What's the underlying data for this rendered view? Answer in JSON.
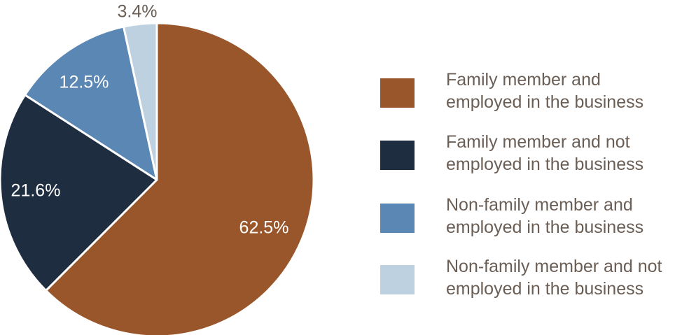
{
  "chart_data": {
    "type": "pie",
    "title": "",
    "categories": [
      "Family member and employed in the business",
      "Family member and not employed in the business",
      "Non-family member and employed in the business",
      "Non-family member and not employed in the business"
    ],
    "values": [
      62.5,
      21.6,
      12.5,
      3.4
    ],
    "value_labels": [
      "62.5%",
      "21.6%",
      "12.5%",
      "3.4%"
    ],
    "colors": [
      "#9a562b",
      "#1f2d41",
      "#5a87b4",
      "#bed1e1"
    ],
    "label_colors": [
      "#ffffff",
      "#ffffff",
      "#ffffff",
      "#6b5e55"
    ],
    "start_angle_deg": 0,
    "direction": "clockwise",
    "legend_position": "right"
  },
  "legend": {
    "items": [
      {
        "line1": "Family member and",
        "line2": "employed in the business"
      },
      {
        "line1": "Family member and not",
        "line2": "employed in the business"
      },
      {
        "line1": "Non-family member and",
        "line2": "employed in the business"
      },
      {
        "line1": "Non-family member and not",
        "line2": "employed in the business"
      }
    ]
  }
}
